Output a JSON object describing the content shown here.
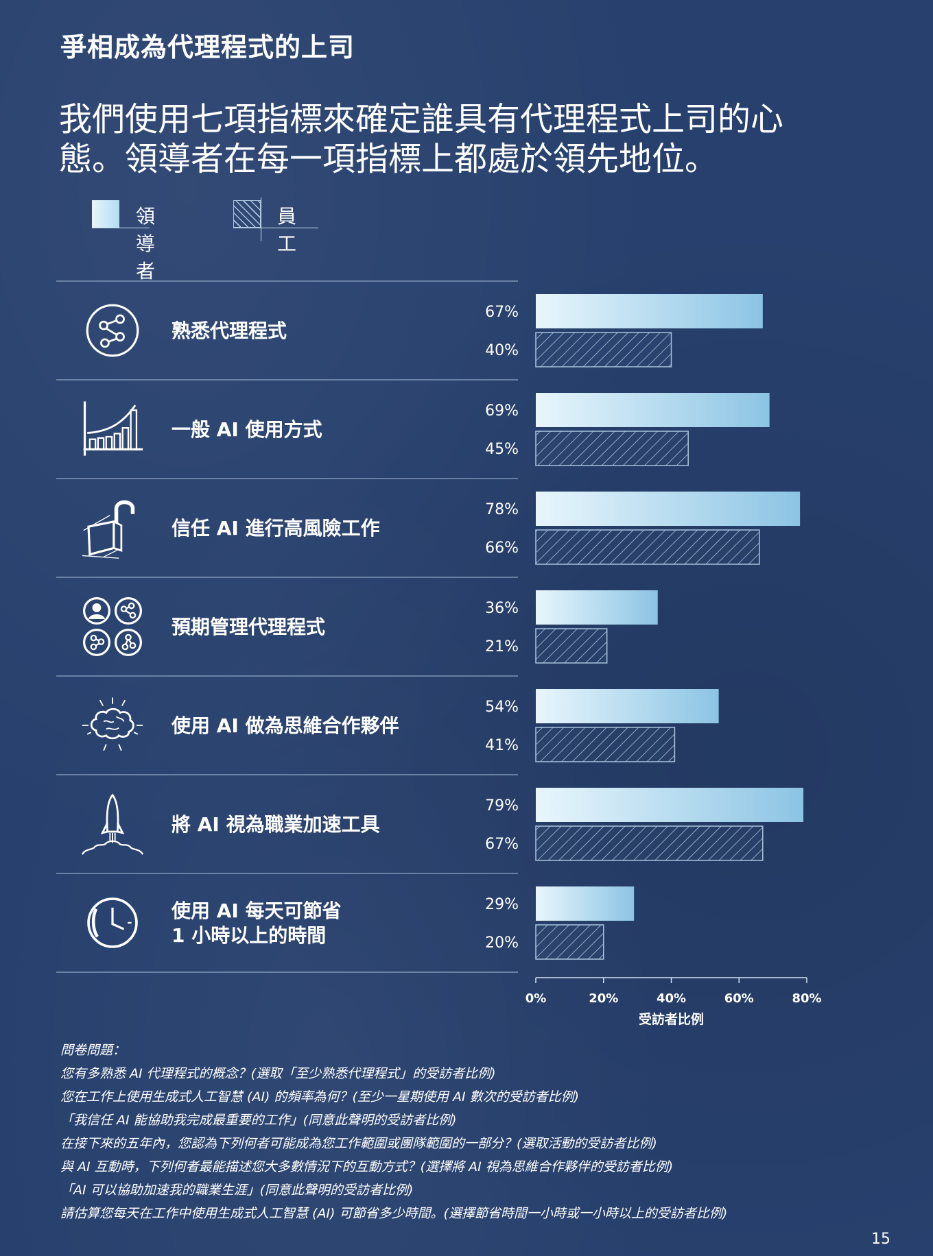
{
  "kicker": "爭相成為代理程式的上司",
  "headline": "我們使用七項指標來確定誰具有代理程式上司的心態。領導者在每一項指標上都處於領先地位。",
  "colors": {
    "background": "#27406d",
    "leader_light": "#e6f5fc",
    "leader_dark": "#8cc4e4",
    "staff_hatch": "#a8c4de"
  },
  "chart_data": {
    "type": "bar",
    "orientation": "horizontal",
    "categories": [
      {
        "label": "熟悉代理程式",
        "icon": "network-circle-icon"
      },
      {
        "label": "一般 AI 使用方式",
        "icon": "growth-bar-chart-icon"
      },
      {
        "label": "信任 AI 進行高風險工作",
        "icon": "open-padlock-icon"
      },
      {
        "label": "預期管理代理程式",
        "icon": "people-and-agents-icon"
      },
      {
        "label": "使用 AI 做為思維合作夥伴",
        "icon": "brain-icon"
      },
      {
        "label": "將 AI 視為職業加速工具",
        "icon": "rocket-icon"
      },
      {
        "label": "使用 AI 每天可節省\n1 小時以上的時間",
        "icon": "clock-icon"
      }
    ],
    "series": [
      {
        "name": "領導者",
        "values": [
          67,
          69,
          78,
          36,
          54,
          79,
          29
        ],
        "labels": [
          "67%",
          "69%",
          "78%",
          "36%",
          "54%",
          "79%",
          "29%"
        ]
      },
      {
        "name": "員工",
        "values": [
          40,
          45,
          66,
          21,
          41,
          67,
          20
        ],
        "labels": [
          "40%",
          "45%",
          "66%",
          "21%",
          "41%",
          "67%",
          "20%"
        ]
      }
    ],
    "xlim": [
      0,
      80
    ],
    "xticks": [
      "0%",
      "20%",
      "40%",
      "60%",
      "80%"
    ],
    "xlabel": "受訪者比例",
    "ylabel": "",
    "legend": "top-left",
    "grid": false
  },
  "notes": {
    "title": "問卷問題：",
    "lines": [
      "您有多熟悉 AI 代理程式的概念？(選取「至少熟悉代理程式」的受訪者比例)",
      "您在工作上使用生成式人工智慧 (AI) 的頻率為何？(至少一星期使用 AI 數次的受訪者比例)",
      "「我信任 AI 能協助我完成最重要的工作」(同意此聲明的受訪者比例)",
      "在接下來的五年內，您認為下列何者可能成為您工作範圍或團隊範圍的一部分？(選取活動的受訪者比例)",
      "與 AI 互動時，下列何者最能描述您大多數情況下的互動方式？(選擇將 AI 視為思維合作夥伴的受訪者比例)",
      "「AI 可以協助加速我的職業生涯」(同意此聲明的受訪者比例)",
      "請估算您每天在工作中使用生成式人工智慧 (AI) 可節省多少時間。(選擇節省時間一小時或一小時以上的受訪者比例)"
    ]
  },
  "page_number": "15"
}
